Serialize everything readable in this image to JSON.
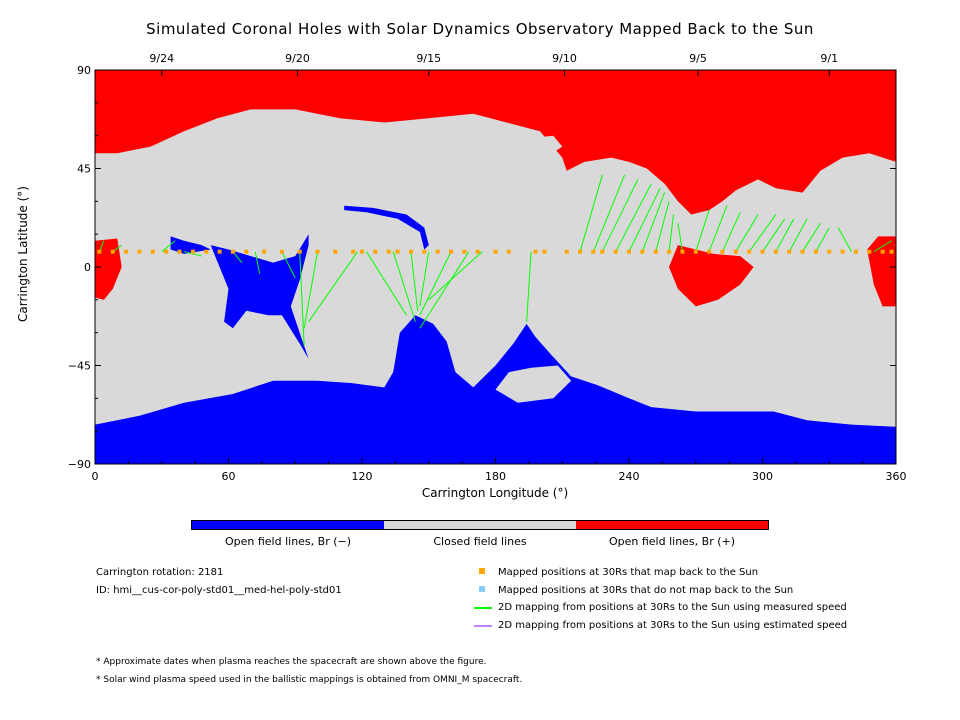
{
  "chart_data": {
    "type": "map",
    "title": "Simulated Coronal Holes with Solar Dynamics Observatory Mapped Back to the Sun",
    "xlabel": "Carrington Longitude (°)",
    "ylabel": "Carrington Latitude (°)",
    "xlim": [
      0,
      360
    ],
    "ylim": [
      -90,
      90
    ],
    "x_ticks": [
      "0",
      "60",
      "120",
      "180",
      "240",
      "300",
      "360"
    ],
    "y_ticks": [
      "90",
      "45",
      "0",
      "−45",
      "−90"
    ],
    "top_date_ticks": [
      {
        "label": "9/24",
        "lon": 30
      },
      {
        "label": "9/20",
        "lon": 91
      },
      {
        "label": "9/15",
        "lon": 150
      },
      {
        "label": "9/10",
        "lon": 211
      },
      {
        "label": "9/5",
        "lon": 271
      },
      {
        "label": "9/1",
        "lon": 330
      }
    ],
    "colorbar": [
      {
        "label": "Open field lines, Br (−)",
        "color": "#0000ff"
      },
      {
        "label": "Closed field lines",
        "color": "#d9d9d9"
      },
      {
        "label": "Open field lines, Br (+)",
        "color": "#ff0000"
      }
    ],
    "mapped_latitude": 7,
    "mapped_longitudes": [
      2,
      8,
      14,
      20,
      26,
      32,
      38,
      44,
      50,
      56,
      62,
      68,
      76,
      84,
      92,
      100,
      108,
      116,
      120,
      126,
      132,
      136,
      142,
      148,
      154,
      160,
      166,
      172,
      180,
      186,
      198,
      202,
      212,
      218,
      224,
      228,
      234,
      240,
      246,
      252,
      258,
      264,
      270,
      276,
      282,
      288,
      294,
      300,
      306,
      312,
      318,
      324,
      330,
      336,
      342,
      348,
      354,
      358
    ],
    "mapping_lines": [
      {
        "from": [
          2,
          7
        ],
        "to": [
          4,
          12
        ]
      },
      {
        "from": [
          8,
          7
        ],
        "to": [
          12,
          10
        ]
      },
      {
        "from": [
          30,
          7
        ],
        "to": [
          36,
          12
        ]
      },
      {
        "from": [
          40,
          7
        ],
        "to": [
          48,
          5
        ]
      },
      {
        "from": [
          62,
          7
        ],
        "to": [
          66,
          2
        ]
      },
      {
        "from": [
          72,
          7
        ],
        "to": [
          74,
          -3
        ]
      },
      {
        "from": [
          84,
          7
        ],
        "to": [
          90,
          -5
        ]
      },
      {
        "from": [
          92,
          7
        ],
        "to": [
          94,
          -36
        ]
      },
      {
        "from": [
          100,
          7
        ],
        "to": [
          94,
          -28
        ]
      },
      {
        "from": [
          118,
          7
        ],
        "to": [
          96,
          -25
        ]
      },
      {
        "from": [
          122,
          7
        ],
        "to": [
          140,
          -22
        ]
      },
      {
        "from": [
          134,
          7
        ],
        "to": [
          144,
          -25
        ]
      },
      {
        "from": [
          142,
          7
        ],
        "to": [
          145,
          -20
        ]
      },
      {
        "from": [
          150,
          7
        ],
        "to": [
          146,
          -18
        ]
      },
      {
        "from": [
          160,
          7
        ],
        "to": [
          146,
          -22
        ]
      },
      {
        "from": [
          168,
          7
        ],
        "to": [
          146,
          -28
        ]
      },
      {
        "from": [
          174,
          7
        ],
        "to": [
          150,
          -15
        ]
      },
      {
        "from": [
          196,
          7
        ],
        "to": [
          194,
          -25
        ]
      },
      {
        "from": [
          218,
          7
        ],
        "to": [
          228,
          42
        ]
      },
      {
        "from": [
          224,
          7
        ],
        "to": [
          238,
          42
        ]
      },
      {
        "from": [
          228,
          7
        ],
        "to": [
          244,
          40
        ]
      },
      {
        "from": [
          234,
          7
        ],
        "to": [
          250,
          38
        ]
      },
      {
        "from": [
          240,
          7
        ],
        "to": [
          254,
          36
        ]
      },
      {
        "from": [
          246,
          7
        ],
        "to": [
          256,
          34
        ]
      },
      {
        "from": [
          252,
          7
        ],
        "to": [
          258,
          30
        ]
      },
      {
        "from": [
          258,
          7
        ],
        "to": [
          260,
          24
        ]
      },
      {
        "from": [
          264,
          7
        ],
        "to": [
          262,
          20
        ]
      },
      {
        "from": [
          270,
          7
        ],
        "to": [
          276,
          26
        ]
      },
      {
        "from": [
          276,
          7
        ],
        "to": [
          284,
          28
        ]
      },
      {
        "from": [
          282,
          7
        ],
        "to": [
          290,
          25
        ]
      },
      {
        "from": [
          288,
          7
        ],
        "to": [
          298,
          24
        ]
      },
      {
        "from": [
          294,
          7
        ],
        "to": [
          306,
          24
        ]
      },
      {
        "from": [
          300,
          7
        ],
        "to": [
          310,
          22
        ]
      },
      {
        "from": [
          306,
          7
        ],
        "to": [
          314,
          22
        ]
      },
      {
        "from": [
          312,
          7
        ],
        "to": [
          320,
          22
        ]
      },
      {
        "from": [
          318,
          7
        ],
        "to": [
          326,
          20
        ]
      },
      {
        "from": [
          324,
          7
        ],
        "to": [
          330,
          18
        ]
      },
      {
        "from": [
          340,
          7
        ],
        "to": [
          334,
          18
        ]
      },
      {
        "from": [
          350,
          7
        ],
        "to": [
          358,
          12
        ]
      }
    ],
    "regions": {
      "positive_open": [
        {
          "name": "north-polar-cap",
          "points": [
            [
              0,
              90
            ],
            [
              360,
              90
            ],
            [
              360,
              48
            ],
            [
              348,
              52
            ],
            [
              336,
              50
            ],
            [
              326,
              44
            ],
            [
              318,
              34
            ],
            [
              306,
              36
            ],
            [
              298,
              40
            ],
            [
              288,
              35
            ],
            [
              282,
              30
            ],
            [
              276,
              26
            ],
            [
              268,
              24
            ],
            [
              262,
              30
            ],
            [
              256,
              38
            ],
            [
              248,
              45
            ],
            [
              240,
              48
            ],
            [
              232,
              50
            ],
            [
              220,
              48
            ],
            [
              212,
              44
            ],
            [
              210,
              50
            ],
            [
              200,
              62
            ],
            [
              185,
              66
            ],
            [
              170,
              70
            ],
            [
              150,
              68
            ],
            [
              130,
              66
            ],
            [
              110,
              68
            ],
            [
              90,
              72
            ],
            [
              70,
              72
            ],
            [
              55,
              68
            ],
            [
              40,
              62
            ],
            [
              25,
              55
            ],
            [
              10,
              52
            ],
            [
              0,
              52
            ]
          ]
        },
        {
          "name": "west-edge-patch",
          "points": [
            [
              0,
              12
            ],
            [
              10,
              13
            ],
            [
              12,
              0
            ],
            [
              8,
              -10
            ],
            [
              4,
              -15
            ],
            [
              0,
              -14
            ]
          ]
        },
        {
          "name": "mid-positive-patch",
          "points": [
            [
              262,
              10
            ],
            [
              278,
              6
            ],
            [
              290,
              5
            ],
            [
              296,
              0
            ],
            [
              290,
              -8
            ],
            [
              280,
              -15
            ],
            [
              270,
              -18
            ],
            [
              262,
              -10
            ],
            [
              258,
              0
            ]
          ]
        },
        {
          "name": "east-edge-patch",
          "points": [
            [
              347,
              8
            ],
            [
              352,
              14
            ],
            [
              360,
              14
            ],
            [
              360,
              -18
            ],
            [
              354,
              -18
            ],
            [
              350,
              -8
            ]
          ]
        }
      ],
      "negative_open": [
        {
          "name": "south-polar-band",
          "points": [
            [
              0,
              -90
            ],
            [
              360,
              -90
            ],
            [
              360,
              -73
            ],
            [
              340,
              -72
            ],
            [
              320,
              -70
            ],
            [
              305,
              -66
            ],
            [
              290,
              -66
            ],
            [
              270,
              -66
            ],
            [
              250,
              -64
            ],
            [
              240,
              -60
            ],
            [
              226,
              -54
            ],
            [
              214,
              -50
            ],
            [
              205,
              -40
            ],
            [
              198,
              -32
            ],
            [
              194,
              -26
            ],
            [
              188,
              -35
            ],
            [
              180,
              -45
            ],
            [
              170,
              -55
            ],
            [
              162,
              -48
            ],
            [
              158,
              -34
            ],
            [
              152,
              -26
            ],
            [
              144,
              -22
            ],
            [
              137,
              -30
            ],
            [
              134,
              -48
            ],
            [
              130,
              -55
            ],
            [
              115,
              -53
            ],
            [
              100,
              -52
            ],
            [
              80,
              -52
            ],
            [
              62,
              -58
            ],
            [
              40,
              -62
            ],
            [
              20,
              -68
            ],
            [
              0,
              -72
            ]
          ]
        },
        {
          "name": "equatorial-hole-left",
          "points": [
            [
              52,
              10
            ],
            [
              60,
              8
            ],
            [
              70,
              5
            ],
            [
              80,
              2
            ],
            [
              90,
              5
            ],
            [
              96,
              15
            ],
            [
              96,
              10
            ],
            [
              92,
              -6
            ],
            [
              88,
              -18
            ],
            [
              92,
              -30
            ],
            [
              96,
              -42
            ],
            [
              92,
              -35
            ],
            [
              84,
              -22
            ],
            [
              78,
              -22
            ],
            [
              68,
              -20
            ],
            [
              62,
              -28
            ],
            [
              58,
              -25
            ],
            [
              60,
              -10
            ],
            [
              56,
              0
            ]
          ]
        },
        {
          "name": "equatorial-stem",
          "points": [
            [
              34,
              14
            ],
            [
              40,
              12
            ],
            [
              48,
              10
            ],
            [
              52,
              8
            ],
            [
              40,
              6
            ],
            [
              34,
              8
            ]
          ]
        },
        {
          "name": "upper-filament",
          "points": [
            [
              112,
              28
            ],
            [
              125,
              27
            ],
            [
              140,
              24
            ],
            [
              148,
              18
            ],
            [
              150,
              10
            ],
            [
              148,
              8
            ],
            [
              146,
              16
            ],
            [
              136,
              22
            ],
            [
              122,
              25
            ],
            [
              112,
              26
            ]
          ]
        }
      ],
      "closed_islands": [
        {
          "name": "south-island",
          "points": [
            [
              196,
              -46
            ],
            [
              208,
              -45
            ],
            [
              214,
              -52
            ],
            [
              206,
              -60
            ],
            [
              190,
              -62
            ],
            [
              180,
              -56
            ],
            [
              186,
              -48
            ]
          ]
        },
        {
          "name": "north-island",
          "points": [
            [
              196,
              59
            ],
            [
              206,
              60
            ],
            [
              210,
              55
            ],
            [
              204,
              51
            ],
            [
              196,
              54
            ]
          ]
        }
      ]
    }
  },
  "legend": {
    "rotation": "Carrington rotation: 2181",
    "id": "ID: hmi__cus-cor-poly-std01__med-hel-poly-std01",
    "items": [
      {
        "label": "Mapped positions at 30Rs that map back to the Sun",
        "color": "#ffa500",
        "kind": "square"
      },
      {
        "label": "Mapped positions at 30Rs that do not map back to the Sun",
        "color": "#87cefa",
        "kind": "square"
      },
      {
        "label": "2D mapping from positions at 30Rs to the Sun using measured speed",
        "color": "#00ff00",
        "kind": "line"
      },
      {
        "label": "2D mapping from positions at 30Rs to the Sun using estimated speed",
        "color": "#c080ff",
        "kind": "line"
      }
    ]
  },
  "notes": [
    "* Approximate dates when plasma reaches the spacecraft are shown above the figure.",
    "* Solar wind plasma speed used in the ballistic mappings is obtained from OMNI_M spacecraft."
  ]
}
